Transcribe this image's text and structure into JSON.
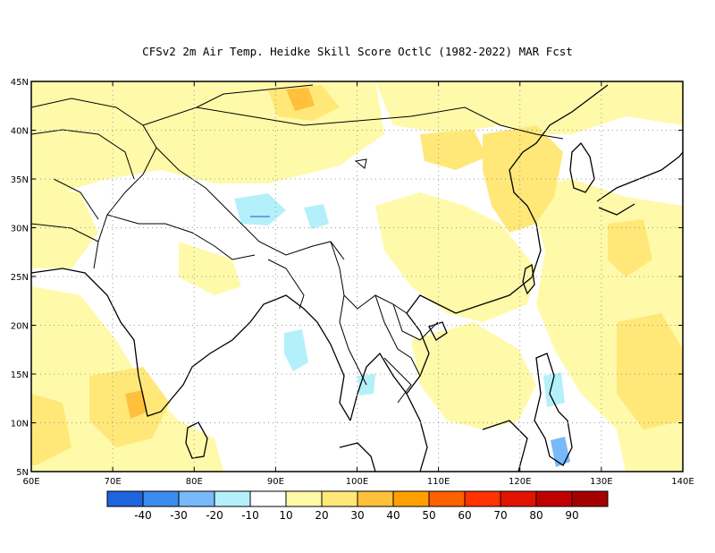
{
  "title": "CFSv2  2m Air Temp. Heidke Skill Score OctlC (1982-2022) MAR Fcst",
  "map": {
    "lon_ticks": [
      "60E",
      "70E",
      "80E",
      "90E",
      "100E",
      "110E",
      "120E",
      "130E",
      "140E"
    ],
    "lat_ticks": [
      "45N",
      "40N",
      "35N",
      "30N",
      "25N",
      "20N",
      "15N",
      "10N",
      "5N"
    ],
    "lon_range": [
      60,
      140
    ],
    "lat_range": [
      5,
      45
    ],
    "grid": "dotted"
  },
  "colorbar": {
    "colors": [
      "#1e64dc",
      "#3c8cf0",
      "#78b9fa",
      "#b4f0fa",
      "#ffffff",
      "#fffaaa",
      "#ffe878",
      "#ffc03c",
      "#ffa000",
      "#ff6000",
      "#ff3200",
      "#e11400",
      "#c00000",
      "#a50000"
    ],
    "labels": [
      "-40",
      "-30",
      "-20",
      "-10",
      "10",
      "20",
      "30",
      "40",
      "50",
      "60",
      "70",
      "80",
      "90"
    ]
  }
}
